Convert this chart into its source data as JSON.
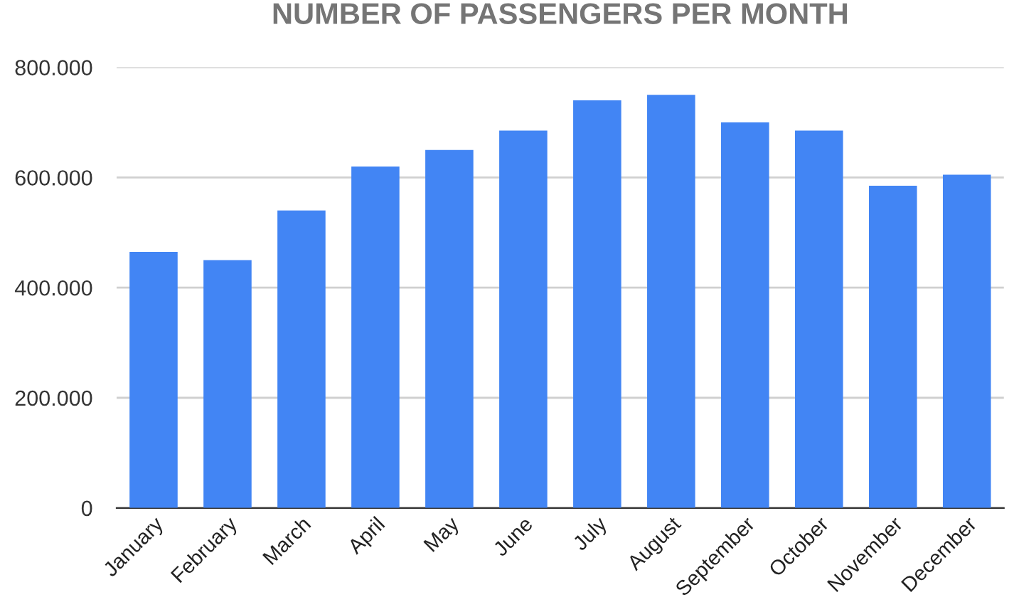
{
  "chart_data": {
    "type": "bar",
    "title": "NUMBER OF PASSENGERS PER MONTH",
    "categories": [
      "January",
      "February",
      "March",
      "April",
      "May",
      "June",
      "July",
      "August",
      "September",
      "October",
      "November",
      "December"
    ],
    "values": [
      465000,
      450000,
      540000,
      620000,
      650000,
      685000,
      740000,
      750000,
      700000,
      685000,
      585000,
      605000
    ],
    "color": "#4285f4",
    "ylim": [
      0,
      800000
    ],
    "yticks": [
      0,
      {
        "value": 200000,
        "label": "200.000"
      },
      {
        "value": 400000,
        "label": "400.000"
      },
      {
        "value": 600000,
        "label": "600.000"
      },
      {
        "value": 800000,
        "label": "800.000"
      }
    ],
    "grid": "y"
  }
}
